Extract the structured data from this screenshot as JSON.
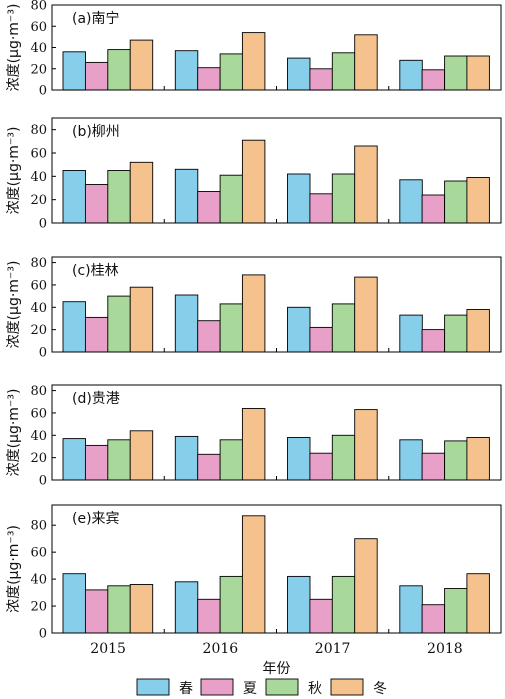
{
  "chart_data": {
    "type": "bar",
    "categories": [
      "2015",
      "2016",
      "2017",
      "2018"
    ],
    "xlabel": "年份",
    "legend": {
      "position": "bottom",
      "entries": [
        "春",
        "夏",
        "秋",
        "冬"
      ]
    },
    "colors": {
      "春": "#87ceeb",
      "夏": "#e8a0c8",
      "秋": "#a8d89a",
      "冬": "#f5c28e",
      "outline": "#000000"
    },
    "ylabel": "浓度(μg·m⁻³)",
    "panels": [
      {
        "title": "(a)南宁",
        "ylim": [
          0,
          80
        ],
        "yticks": [
          0,
          20,
          40,
          60,
          80
        ],
        "series": [
          {
            "name": "春",
            "values": [
              36,
              37,
              30,
              28
            ]
          },
          {
            "name": "夏",
            "values": [
              26,
              21,
              20,
              19
            ]
          },
          {
            "name": "秋",
            "values": [
              38,
              34,
              35,
              32
            ]
          },
          {
            "name": "冬",
            "values": [
              47,
              54,
              52,
              32
            ]
          }
        ]
      },
      {
        "title": "(b)柳州",
        "ylim": [
          0,
          90
        ],
        "yticks": [
          0,
          20,
          40,
          60,
          80
        ],
        "series": [
          {
            "name": "春",
            "values": [
              45,
              46,
              42,
              37
            ]
          },
          {
            "name": "夏",
            "values": [
              33,
              27,
              25,
              24
            ]
          },
          {
            "name": "秋",
            "values": [
              45,
              41,
              42,
              36
            ]
          },
          {
            "name": "冬",
            "values": [
              52,
              71,
              66,
              39
            ]
          }
        ]
      },
      {
        "title": "(c)桂林",
        "ylim": [
          0,
          85
        ],
        "yticks": [
          0,
          20,
          40,
          60,
          80
        ],
        "series": [
          {
            "name": "春",
            "values": [
              45,
              51,
              40,
              33
            ]
          },
          {
            "name": "夏",
            "values": [
              31,
              28,
              22,
              20
            ]
          },
          {
            "name": "秋",
            "values": [
              50,
              43,
              43,
              33
            ]
          },
          {
            "name": "冬",
            "values": [
              58,
              69,
              67,
              38
            ]
          }
        ]
      },
      {
        "title": "(d)贵港",
        "ylim": [
          0,
          85
        ],
        "yticks": [
          0,
          20,
          40,
          60,
          80
        ],
        "series": [
          {
            "name": "春",
            "values": [
              37,
              39,
              38,
              36
            ]
          },
          {
            "name": "夏",
            "values": [
              31,
              23,
              24,
              24
            ]
          },
          {
            "name": "秋",
            "values": [
              36,
              36,
              40,
              35
            ]
          },
          {
            "name": "冬",
            "values": [
              44,
              64,
              63,
              38
            ]
          }
        ]
      },
      {
        "title": "(e)来宾",
        "ylim": [
          0,
          95
        ],
        "yticks": [
          0,
          20,
          40,
          60,
          80
        ],
        "series": [
          {
            "name": "春",
            "values": [
              44,
              38,
              42,
              35
            ]
          },
          {
            "name": "夏",
            "values": [
              32,
              25,
              25,
              21
            ]
          },
          {
            "name": "秋",
            "values": [
              35,
              42,
              42,
              33
            ]
          },
          {
            "name": "冬",
            "values": [
              36,
              87,
              70,
              44
            ]
          }
        ]
      }
    ]
  }
}
